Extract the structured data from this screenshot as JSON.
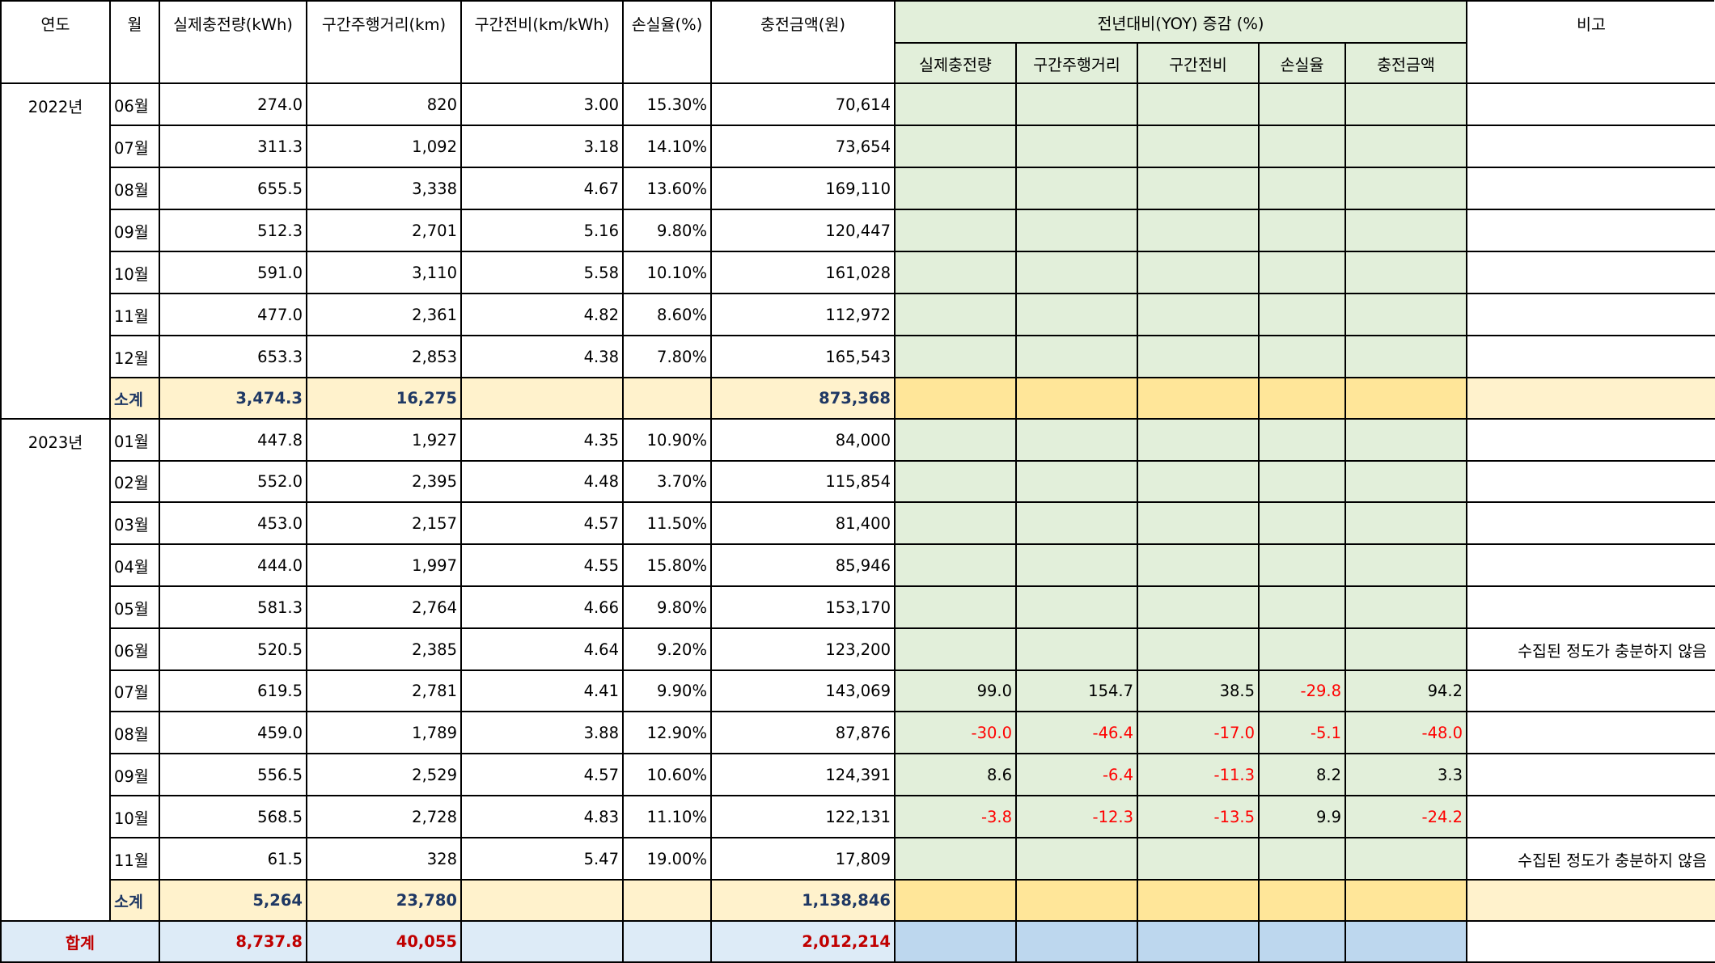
{
  "header": {
    "year": "연도",
    "month": "월",
    "charge_kwh": "실제충전량(kWh)",
    "distance_km": "구간주행거리(km)",
    "efficiency": "구간전비(km/kWh)",
    "loss_rate": "손실율(%)",
    "charge_cost": "충전금액(원)",
    "yoy_group": "전년대비(YOY) 증감 (%)",
    "yoy_charge": "실제충전량",
    "yoy_distance": "구간주행거리",
    "yoy_efficiency": "구간전비",
    "yoy_loss": "손실율",
    "yoy_cost": "충전금액",
    "note": "비고"
  },
  "years": [
    "2022년",
    "2023년"
  ],
  "rows2022": [
    {
      "month": "06월",
      "charge": "274.0",
      "distance": "820",
      "eff": "3.00",
      "loss": "15.30%",
      "cost": "70,614"
    },
    {
      "month": "07월",
      "charge": "311.3",
      "distance": "1,092",
      "eff": "3.18",
      "loss": "14.10%",
      "cost": "73,654"
    },
    {
      "month": "08월",
      "charge": "655.5",
      "distance": "3,338",
      "eff": "4.67",
      "loss": "13.60%",
      "cost": "169,110"
    },
    {
      "month": "09월",
      "charge": "512.3",
      "distance": "2,701",
      "eff": "5.16",
      "loss": "9.80%",
      "cost": "120,447"
    },
    {
      "month": "10월",
      "charge": "591.0",
      "distance": "3,110",
      "eff": "5.58",
      "loss": "10.10%",
      "cost": "161,028"
    },
    {
      "month": "11월",
      "charge": "477.0",
      "distance": "2,361",
      "eff": "4.82",
      "loss": "8.60%",
      "cost": "112,972"
    },
    {
      "month": "12월",
      "charge": "653.3",
      "distance": "2,853",
      "eff": "4.38",
      "loss": "7.80%",
      "cost": "165,543"
    }
  ],
  "subtotal2022": {
    "label": "소계",
    "charge": "3,474.3",
    "distance": "16,275",
    "cost": "873,368"
  },
  "rows2023": [
    {
      "month": "01월",
      "charge": "447.8",
      "distance": "1,927",
      "eff": "4.35",
      "loss": "10.90%",
      "cost": "84,000"
    },
    {
      "month": "02월",
      "charge": "552.0",
      "distance": "2,395",
      "eff": "4.48",
      "loss": "3.70%",
      "cost": "115,854"
    },
    {
      "month": "03월",
      "charge": "453.0",
      "distance": "2,157",
      "eff": "4.57",
      "loss": "11.50%",
      "cost": "81,400"
    },
    {
      "month": "04월",
      "charge": "444.0",
      "distance": "1,997",
      "eff": "4.55",
      "loss": "15.80%",
      "cost": "85,946"
    },
    {
      "month": "05월",
      "charge": "581.3",
      "distance": "2,764",
      "eff": "4.66",
      "loss": "9.80%",
      "cost": "153,170"
    },
    {
      "month": "06월",
      "charge": "520.5",
      "distance": "2,385",
      "eff": "4.64",
      "loss": "9.20%",
      "cost": "123,200",
      "note": "수집된 정도가 충분하지 않음"
    },
    {
      "month": "07월",
      "charge": "619.5",
      "distance": "2,781",
      "eff": "4.41",
      "loss": "9.90%",
      "cost": "143,069",
      "y1": "99.0",
      "y2": "154.7",
      "y3": "38.5",
      "y4": "-29.8",
      "y5": "94.2"
    },
    {
      "month": "08월",
      "charge": "459.0",
      "distance": "1,789",
      "eff": "3.88",
      "loss": "12.90%",
      "cost": "87,876",
      "y1": "-30.0",
      "y2": "-46.4",
      "y3": "-17.0",
      "y4": "-5.1",
      "y5": "-48.0"
    },
    {
      "month": "09월",
      "charge": "556.5",
      "distance": "2,529",
      "eff": "4.57",
      "loss": "10.60%",
      "cost": "124,391",
      "y1": "8.6",
      "y2": "-6.4",
      "y3": "-11.3",
      "y4": "8.2",
      "y5": "3.3"
    },
    {
      "month": "10월",
      "charge": "568.5",
      "distance": "2,728",
      "eff": "4.83",
      "loss": "11.10%",
      "cost": "122,131",
      "y1": "-3.8",
      "y2": "-12.3",
      "y3": "-13.5",
      "y4": "9.9",
      "y5": "-24.2"
    },
    {
      "month": "11월",
      "charge": "61.5",
      "distance": "328",
      "eff": "5.47",
      "loss": "19.00%",
      "cost": "17,809",
      "note": "수집된 정도가 충분하지 않음"
    }
  ],
  "subtotal2023": {
    "label": "소계",
    "charge": "5,264",
    "distance": "23,780",
    "cost": "1,138,846"
  },
  "total": {
    "label": "합계",
    "charge": "8,737.8",
    "distance": "40,055",
    "cost": "2,012,214"
  },
  "colors": {
    "yoy_green": "#e2efda",
    "subtotal_light": "#fff2cc",
    "subtotal_gold": "#ffe699",
    "total_light": "#ddebf7",
    "total_blue": "#bdd7ee",
    "negative": "#ff0000"
  }
}
